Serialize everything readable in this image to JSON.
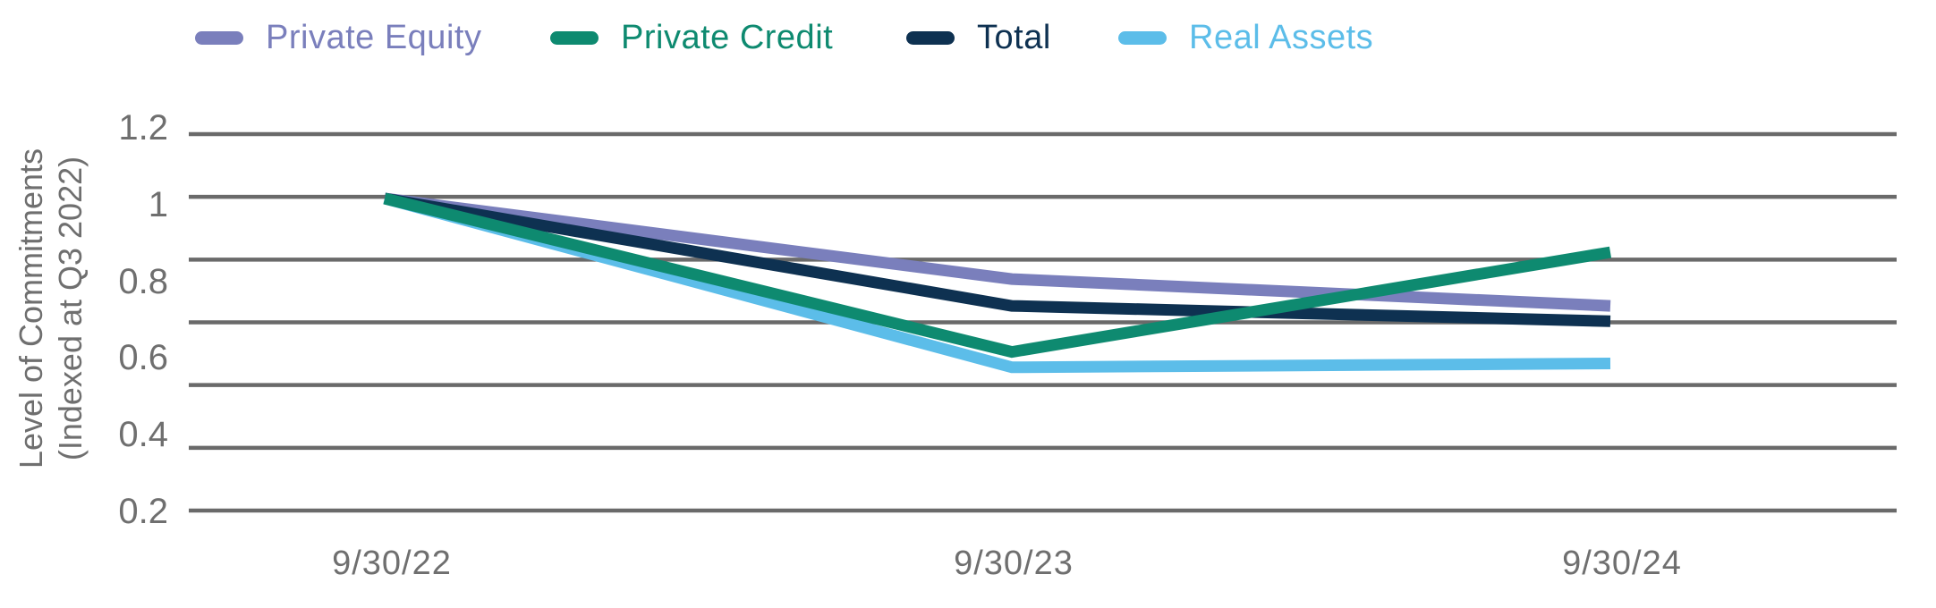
{
  "legend": {
    "position": "top",
    "items": [
      {
        "id": "private-equity",
        "label": "Private Equity",
        "color": "#7a7fbc"
      },
      {
        "id": "private-credit",
        "label": "Private Credit",
        "color": "#0e8a70"
      },
      {
        "id": "total",
        "label": "Total",
        "color": "#0e3151"
      },
      {
        "id": "real-assets",
        "label": "Real Assets",
        "color": "#5cbde9"
      }
    ]
  },
  "chart_data": {
    "type": "line",
    "title": "",
    "xlabel": "",
    "ylabel_line1": "Level of Commitments",
    "ylabel_line2": "(Indexed at Q3 2022)",
    "x": [
      "9/30/22",
      "9/30/23",
      "9/30/24"
    ],
    "series": [
      {
        "name": "Private Equity",
        "color": "#7a7fbc",
        "values": [
          1.0,
          0.79,
          0.72
        ]
      },
      {
        "name": "Private Credit",
        "color": "#0e8a70",
        "values": [
          1.0,
          0.6,
          0.86
        ]
      },
      {
        "name": "Total",
        "color": "#0e3151",
        "values": [
          1.0,
          0.72,
          0.68
        ]
      },
      {
        "name": "Real Assets",
        "color": "#5cbde9",
        "values": [
          1.0,
          0.56,
          0.57
        ]
      }
    ],
    "y_ticks": [
      "1.2",
      "1",
      "0.8",
      "0.6",
      "0.4",
      "0.2"
    ],
    "ylim": [
      0.2,
      1.2
    ],
    "grid": "horizontal",
    "gridline_count": 7,
    "gridline_color": "#6a6a6a",
    "tick_color": "#6f6f6f",
    "legend_position": "top"
  }
}
